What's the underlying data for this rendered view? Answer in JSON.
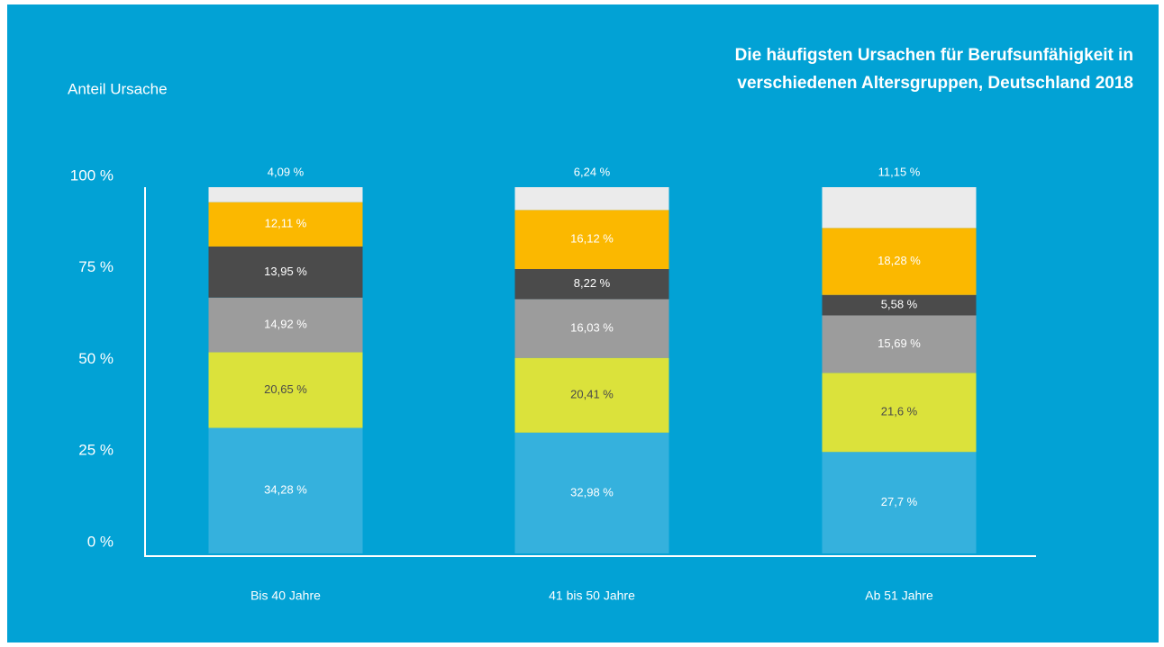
{
  "chart_data": {
    "type": "stacked_bar",
    "title": [
      "Die häufigsten Ursachen für Berufsunfähigkeit in",
      "verschiedenen Altersgruppen, Deutschland 2018"
    ],
    "y_label": "Anteil Ursache",
    "categories": [
      "Bis 40 Jahre",
      "41 bis 50 Jahre",
      "Ab 51 Jahre"
    ],
    "ylim": [
      0,
      100
    ],
    "yticks": [
      {
        "value": 0,
        "label": "0 %"
      },
      {
        "value": 25,
        "label": "25 %"
      },
      {
        "value": 50,
        "label": "50 %"
      },
      {
        "value": 75,
        "label": "75 %"
      },
      {
        "value": 100,
        "label": "100 %"
      }
    ],
    "series": [
      {
        "color": "#35b1dd",
        "label_color": "#ffffff",
        "values": [
          34.28,
          32.98,
          27.7
        ],
        "value_labels": [
          "34,28 %",
          "32,98 %",
          "27,7 %"
        ]
      },
      {
        "color": "#dbe23b",
        "label_color": "#4a4a4a",
        "values": [
          20.65,
          20.41,
          21.6
        ],
        "value_labels": [
          "20,65 %",
          "20,41 %",
          "21,6 %"
        ]
      },
      {
        "color": "#9c9c9c",
        "label_color": "#ffffff",
        "values": [
          14.92,
          16.03,
          15.69
        ],
        "value_labels": [
          "14,92 %",
          "16,03 %",
          "15,69 %"
        ]
      },
      {
        "color": "#4b4b4b",
        "label_color": "#ffffff",
        "values": [
          13.95,
          8.22,
          5.58
        ],
        "value_labels": [
          "13,95 %",
          "8,22 %",
          "5,58 %"
        ]
      },
      {
        "color": "#fbb800",
        "label_color": "#ffffff",
        "values": [
          12.11,
          16.12,
          18.28
        ],
        "value_labels": [
          "12,11 %",
          "16,12 %",
          "18,28 %"
        ]
      },
      {
        "color": "#ebebeb",
        "label_color": "#ffffff",
        "label_above": true,
        "values": [
          4.09,
          6.24,
          11.15
        ],
        "value_labels": [
          "4,09 %",
          "6,24 %",
          "11,15 %"
        ]
      }
    ]
  }
}
